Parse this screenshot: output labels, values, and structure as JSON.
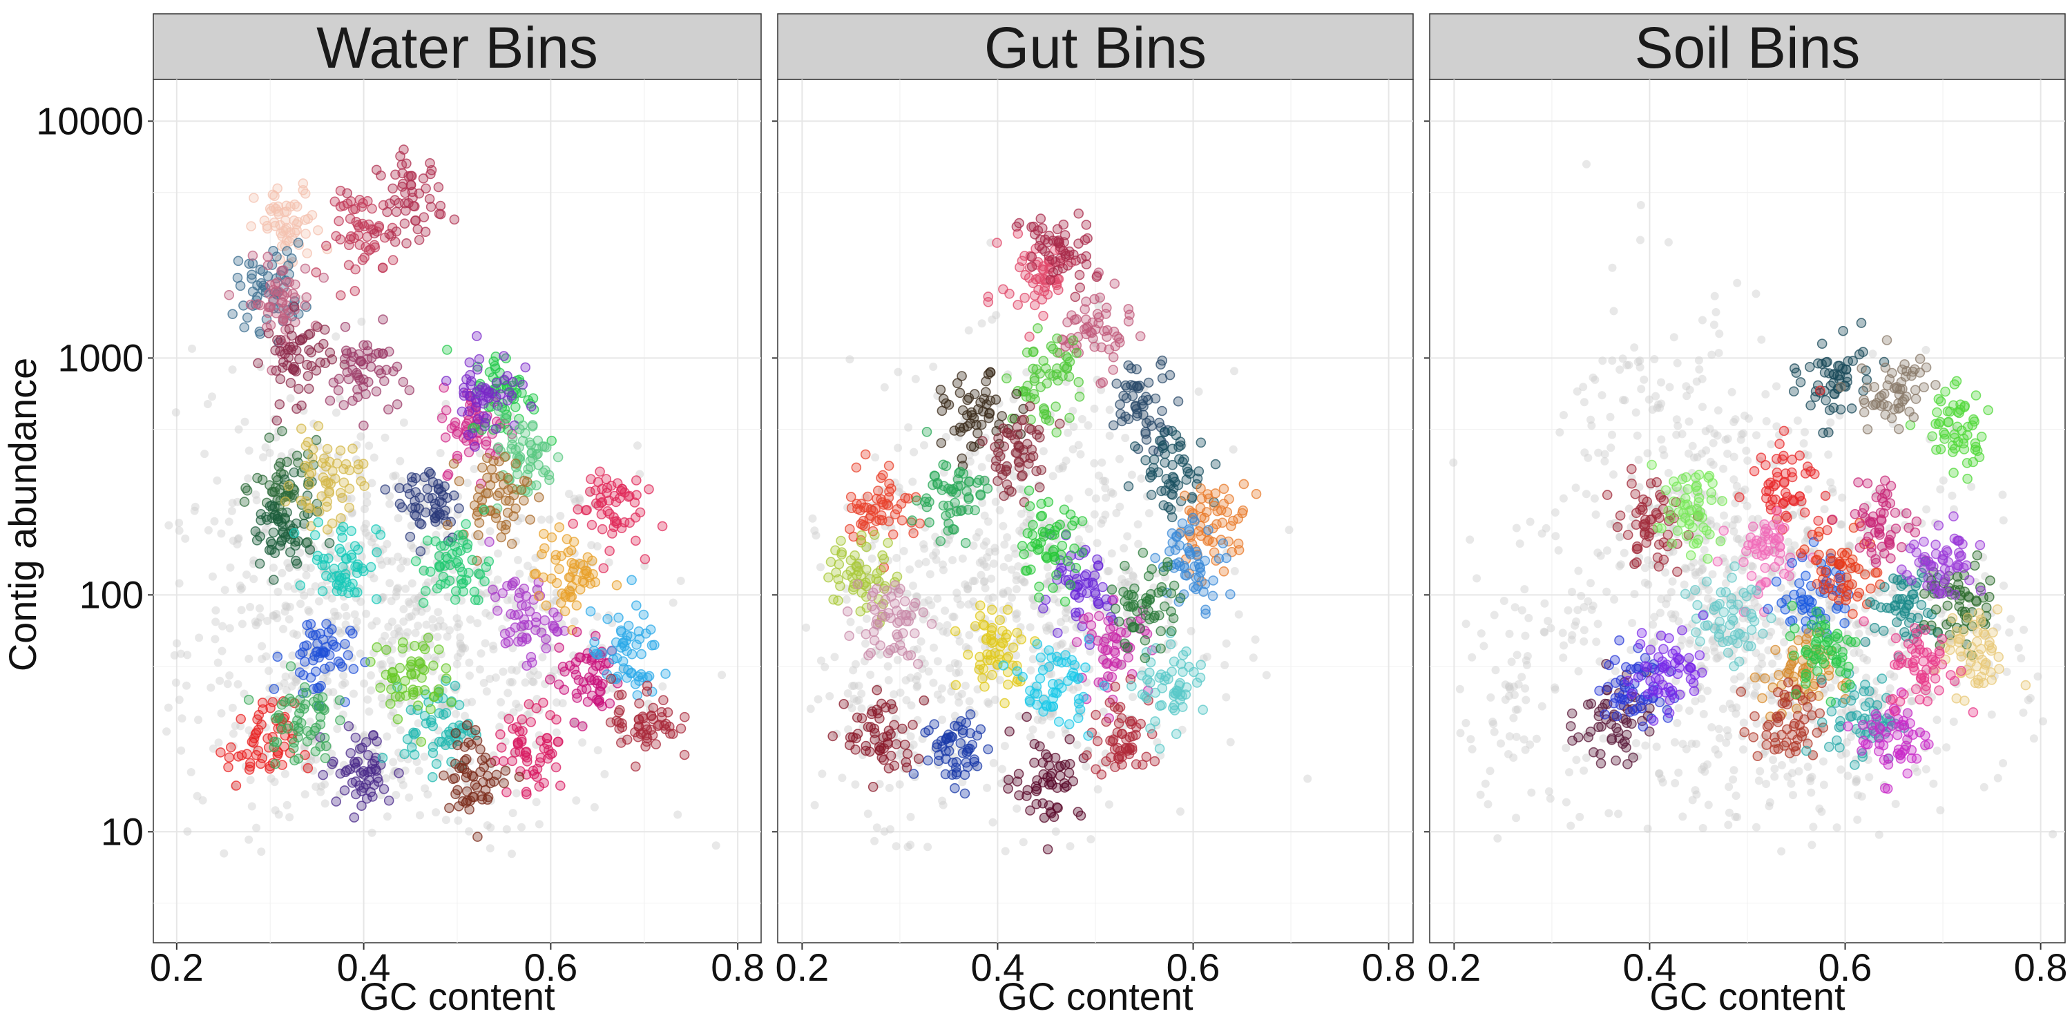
{
  "chart_data": {
    "type": "scatter",
    "ylabel": "Contig abundance",
    "xlabel": "GC content",
    "x_ticks": [
      "0.2",
      "0.4",
      "0.6",
      "0.8"
    ],
    "x_tick_values": [
      0.2,
      0.4,
      0.6,
      0.8
    ],
    "y_ticks": [
      "10",
      "100",
      "1000",
      "10000"
    ],
    "y_tick_values": [
      10,
      100,
      1000,
      10000
    ],
    "xlim": [
      0.175,
      0.825
    ],
    "ylim": [
      3.4,
      15000
    ],
    "y_scale": "log",
    "grid": true,
    "unbinned_color": "#cccccc",
    "panels": [
      {
        "title": "Water Bins",
        "clusters": [
          {
            "x": 0.32,
            "y": 3500,
            "color": "#f4c2b0"
          },
          {
            "x": 0.3,
            "y": 2000,
            "color": "#3b6e8f"
          },
          {
            "x": 0.31,
            "y": 1700,
            "color": "#c06080"
          },
          {
            "x": 0.4,
            "y": 3300,
            "color": "#c23b5a"
          },
          {
            "x": 0.45,
            "y": 4800,
            "color": "#b03050"
          },
          {
            "x": 0.33,
            "y": 1000,
            "color": "#8c2a4a"
          },
          {
            "x": 0.4,
            "y": 850,
            "color": "#9c3b68"
          },
          {
            "x": 0.32,
            "y": 280,
            "color": "#2e6b3a"
          },
          {
            "x": 0.31,
            "y": 180,
            "color": "#1e5e3c"
          },
          {
            "x": 0.36,
            "y": 300,
            "color": "#d4b84a"
          },
          {
            "x": 0.38,
            "y": 140,
            "color": "#16c8b8"
          },
          {
            "x": 0.35,
            "y": 55,
            "color": "#2050d8"
          },
          {
            "x": 0.29,
            "y": 23,
            "color": "#e82020"
          },
          {
            "x": 0.4,
            "y": 18,
            "color": "#4a2a8a"
          },
          {
            "x": 0.48,
            "y": 28,
            "color": "#20b8b0"
          },
          {
            "x": 0.47,
            "y": 250,
            "color": "#2a3a7a"
          },
          {
            "x": 0.52,
            "y": 500,
            "color": "#d22a8a"
          },
          {
            "x": 0.55,
            "y": 700,
            "color": "#22c84a"
          },
          {
            "x": 0.53,
            "y": 740,
            "color": "#7a28c8"
          },
          {
            "x": 0.57,
            "y": 380,
            "color": "#5ac882"
          },
          {
            "x": 0.54,
            "y": 260,
            "color": "#a86a2a"
          },
          {
            "x": 0.5,
            "y": 130,
            "color": "#20c870"
          },
          {
            "x": 0.57,
            "y": 80,
            "color": "#a83ac8"
          },
          {
            "x": 0.62,
            "y": 120,
            "color": "#e8a02a"
          },
          {
            "x": 0.66,
            "y": 240,
            "color": "#e02a5a"
          },
          {
            "x": 0.64,
            "y": 45,
            "color": "#c8107a"
          },
          {
            "x": 0.68,
            "y": 55,
            "color": "#2aa8e8"
          },
          {
            "x": 0.7,
            "y": 30,
            "color": "#a8283a"
          },
          {
            "x": 0.58,
            "y": 22,
            "color": "#d81a60"
          },
          {
            "x": 0.52,
            "y": 18,
            "color": "#7a2a1a"
          },
          {
            "x": 0.45,
            "y": 45,
            "color": "#68c828"
          },
          {
            "x": 0.33,
            "y": 30,
            "color": "#3aa858"
          }
        ]
      },
      {
        "title": "Gut Bins",
        "clusters": [
          {
            "x": 0.44,
            "y": 2200,
            "color": "#e0486a"
          },
          {
            "x": 0.5,
            "y": 1300,
            "color": "#c05a7a"
          },
          {
            "x": 0.46,
            "y": 2800,
            "color": "#a82a4a"
          },
          {
            "x": 0.45,
            "y": 800,
            "color": "#50c838"
          },
          {
            "x": 0.38,
            "y": 550,
            "color": "#3a2a1a"
          },
          {
            "x": 0.55,
            "y": 650,
            "color": "#2a4a6a"
          },
          {
            "x": 0.58,
            "y": 330,
            "color": "#1a5060"
          },
          {
            "x": 0.62,
            "y": 200,
            "color": "#e87a2a"
          },
          {
            "x": 0.6,
            "y": 140,
            "color": "#3a8ad8"
          },
          {
            "x": 0.28,
            "y": 240,
            "color": "#e8402a"
          },
          {
            "x": 0.26,
            "y": 120,
            "color": "#a8c838"
          },
          {
            "x": 0.29,
            "y": 80,
            "color": "#c88aa8"
          },
          {
            "x": 0.35,
            "y": 260,
            "color": "#2aa858"
          },
          {
            "x": 0.42,
            "y": 400,
            "color": "#8a2a3a"
          },
          {
            "x": 0.48,
            "y": 100,
            "color": "#6a28d8"
          },
          {
            "x": 0.45,
            "y": 160,
            "color": "#28c838"
          },
          {
            "x": 0.52,
            "y": 60,
            "color": "#c828a8"
          },
          {
            "x": 0.4,
            "y": 60,
            "color": "#e0c81a"
          },
          {
            "x": 0.36,
            "y": 22,
            "color": "#1a3aa8"
          },
          {
            "x": 0.45,
            "y": 17,
            "color": "#5a0a2a"
          },
          {
            "x": 0.53,
            "y": 25,
            "color": "#b02a3a"
          },
          {
            "x": 0.28,
            "y": 25,
            "color": "#8a1a2a"
          },
          {
            "x": 0.58,
            "y": 40,
            "color": "#5ac8c8"
          },
          {
            "x": 0.46,
            "y": 42,
            "color": "#1ac8e8"
          },
          {
            "x": 0.55,
            "y": 90,
            "color": "#2a7a3a"
          }
        ]
      },
      {
        "title": "Soil Bins",
        "clusters": [
          {
            "x": 0.59,
            "y": 800,
            "color": "#1a4a5a"
          },
          {
            "x": 0.71,
            "y": 500,
            "color": "#50d838"
          },
          {
            "x": 0.65,
            "y": 700,
            "color": "#8a7a6a"
          },
          {
            "x": 0.54,
            "y": 300,
            "color": "#e8282a"
          },
          {
            "x": 0.52,
            "y": 150,
            "color": "#f06ab8"
          },
          {
            "x": 0.4,
            "y": 200,
            "color": "#a02a3a"
          },
          {
            "x": 0.44,
            "y": 220,
            "color": "#78e858"
          },
          {
            "x": 0.48,
            "y": 80,
            "color": "#68c8c8"
          },
          {
            "x": 0.36,
            "y": 30,
            "color": "#5a1a3a"
          },
          {
            "x": 0.39,
            "y": 40,
            "color": "#2a3ad8"
          },
          {
            "x": 0.42,
            "y": 50,
            "color": "#7a28e8"
          },
          {
            "x": 0.57,
            "y": 100,
            "color": "#1a5ae0"
          },
          {
            "x": 0.6,
            "y": 130,
            "color": "#e83a1a"
          },
          {
            "x": 0.64,
            "y": 200,
            "color": "#c82878"
          },
          {
            "x": 0.66,
            "y": 90,
            "color": "#1a8a8a"
          },
          {
            "x": 0.72,
            "y": 90,
            "color": "#2a6a2a"
          },
          {
            "x": 0.73,
            "y": 55,
            "color": "#e8c878"
          },
          {
            "x": 0.7,
            "y": 130,
            "color": "#9a3ad8"
          },
          {
            "x": 0.55,
            "y": 45,
            "color": "#d88a2a"
          },
          {
            "x": 0.54,
            "y": 28,
            "color": "#b0382a"
          },
          {
            "x": 0.62,
            "y": 30,
            "color": "#2aa8a8"
          },
          {
            "x": 0.65,
            "y": 25,
            "color": "#c82ac8"
          },
          {
            "x": 0.58,
            "y": 60,
            "color": "#28c848"
          },
          {
            "x": 0.68,
            "y": 50,
            "color": "#e83a8a"
          }
        ]
      }
    ]
  }
}
